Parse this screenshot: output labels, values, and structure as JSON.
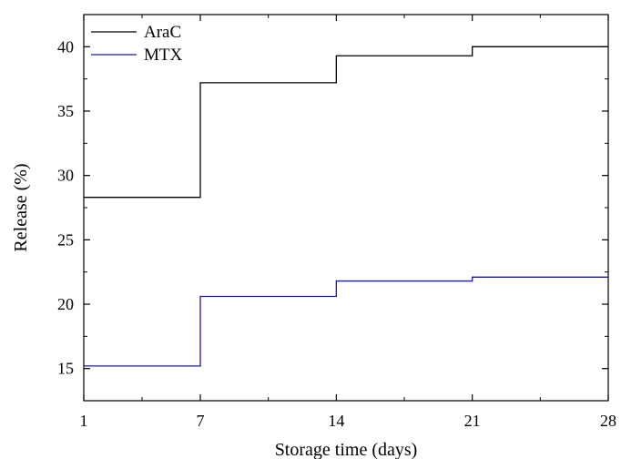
{
  "chart_data": {
    "type": "line",
    "step": true,
    "xlabel": "Storage time (days)",
    "ylabel": "Release (%)",
    "xlim": [
      1,
      28
    ],
    "ylim": [
      12.5,
      42.5
    ],
    "x_ticks": [
      1,
      7,
      14,
      21,
      28
    ],
    "x_minor_ticks": [
      4,
      10.5,
      17.5,
      24.5
    ],
    "y_ticks": [
      15,
      20,
      25,
      30,
      35,
      40
    ],
    "y_minor_ticks": [
      12.5,
      17.5,
      22.5,
      27.5,
      32.5,
      37.5,
      42.5
    ],
    "grid": false,
    "legend_position": "top-left",
    "series": [
      {
        "name": "AraC",
        "color": "#000000",
        "points": [
          {
            "x": 1,
            "y": 28.3
          },
          {
            "x": 7,
            "y": 37.2
          },
          {
            "x": 14,
            "y": 39.3
          },
          {
            "x": 21,
            "y": 40.0
          },
          {
            "x": 28,
            "y": 40.0
          }
        ]
      },
      {
        "name": "MTX",
        "color": "#1a1aa0",
        "points": [
          {
            "x": 1,
            "y": 15.2
          },
          {
            "x": 7,
            "y": 20.6
          },
          {
            "x": 14,
            "y": 21.8
          },
          {
            "x": 21,
            "y": 22.1
          },
          {
            "x": 28,
            "y": 22.1
          }
        ]
      }
    ]
  }
}
